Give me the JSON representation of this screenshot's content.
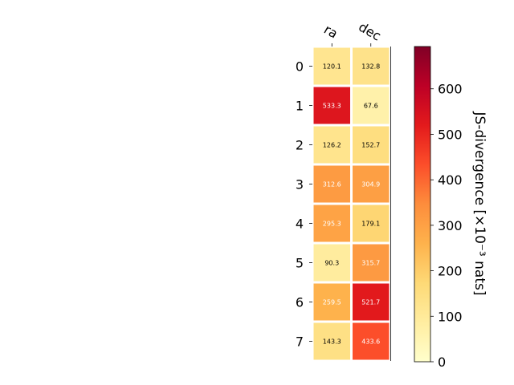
{
  "chart_data": {
    "type": "heatmap",
    "columns": [
      "ra",
      "dec"
    ],
    "rows": [
      "0",
      "1",
      "2",
      "3",
      "4",
      "5",
      "6",
      "7"
    ],
    "values": [
      [
        120.1,
        132.8
      ],
      [
        533.3,
        67.6
      ],
      [
        126.2,
        152.7
      ],
      [
        312.6,
        304.9
      ],
      [
        295.3,
        179.1
      ],
      [
        90.3,
        315.7
      ],
      [
        259.5,
        521.7
      ],
      [
        143.3,
        433.6
      ]
    ],
    "value_labels": [
      [
        "120.1",
        "132.8"
      ],
      [
        "533.3",
        "67.6"
      ],
      [
        "126.2",
        "152.7"
      ],
      [
        "312.6",
        "304.9"
      ],
      [
        "295.3",
        "179.1"
      ],
      [
        "90.3",
        "315.7"
      ],
      [
        "259.5",
        "521.7"
      ],
      [
        "143.3",
        "433.6"
      ]
    ],
    "colorbar": {
      "label": "JS-divergence [×10⁻³ nats]",
      "range": [
        0,
        693
      ],
      "ticks": [
        0,
        100,
        200,
        300,
        400,
        500,
        600
      ],
      "tick_labels": [
        "0",
        "100",
        "200",
        "300",
        "400",
        "500",
        "600"
      ],
      "colormap": "YlOrRd"
    },
    "colors": {
      "colormap_stops": [
        "#ffffcc",
        "#ffeda0",
        "#fed976",
        "#feb24c",
        "#fd8d3c",
        "#fc4e2a",
        "#e31a1c",
        "#bd0026",
        "#800026"
      ],
      "dark_text": "#000000",
      "light_text": "#ffffff",
      "cell_border": "#ffffff"
    }
  }
}
